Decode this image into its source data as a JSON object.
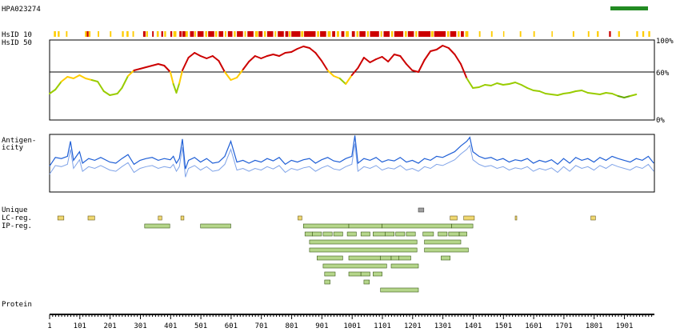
{
  "chart_data": {
    "type": "line",
    "title": "HPA023274",
    "protein_length": 2000,
    "x_ticks": [
      1,
      101,
      201,
      301,
      401,
      501,
      601,
      701,
      801,
      901,
      1001,
      1101,
      1201,
      1301,
      1401,
      1501,
      1601,
      1701,
      1801,
      1901
    ],
    "tracks": {
      "hsid10_label": "HsID 10",
      "hsid50_label": "HsID 50",
      "antigenicity_label_1": "Antigen-",
      "antigenicity_label_2": "icity",
      "unique_label": "Unique",
      "lc_label": "LC-reg.",
      "ip_label": "IP-reg.",
      "protein_label": "Protein"
    },
    "hsid_axis": {
      "ticks": [
        "100%",
        "60%",
        "0%"
      ],
      "ylim": [
        0,
        100
      ],
      "threshold": 60
    },
    "colors": {
      "high": "#cc0000",
      "mid": "#ffcc00",
      "low": "#99cc00",
      "lowest": "#66aa00",
      "antigen_dark": "#1f5fd6",
      "antigen_light": "#7fa3e8",
      "lc_fill": "#f0d870",
      "ip_fill": "#b5d68a",
      "ip_border": "#3d5a1a",
      "legend_bar": "#228b22"
    },
    "hsid50": [
      [
        1,
        33
      ],
      [
        20,
        38
      ],
      [
        40,
        48
      ],
      [
        60,
        54
      ],
      [
        80,
        52
      ],
      [
        100,
        56
      ],
      [
        120,
        52
      ],
      [
        140,
        50
      ],
      [
        160,
        48
      ],
      [
        180,
        36
      ],
      [
        200,
        31
      ],
      [
        225,
        33
      ],
      [
        240,
        40
      ],
      [
        260,
        55
      ],
      [
        280,
        62
      ],
      [
        300,
        64
      ],
      [
        320,
        66
      ],
      [
        340,
        68
      ],
      [
        360,
        70
      ],
      [
        380,
        68
      ],
      [
        400,
        60
      ],
      [
        410,
        45
      ],
      [
        420,
        34
      ],
      [
        430,
        46
      ],
      [
        440,
        62
      ],
      [
        460,
        78
      ],
      [
        480,
        84
      ],
      [
        500,
        80
      ],
      [
        520,
        77
      ],
      [
        540,
        80
      ],
      [
        560,
        74
      ],
      [
        580,
        60
      ],
      [
        600,
        50
      ],
      [
        620,
        53
      ],
      [
        640,
        63
      ],
      [
        660,
        73
      ],
      [
        680,
        80
      ],
      [
        700,
        77
      ],
      [
        720,
        80
      ],
      [
        740,
        82
      ],
      [
        760,
        80
      ],
      [
        780,
        84
      ],
      [
        800,
        85
      ],
      [
        820,
        89
      ],
      [
        840,
        92
      ],
      [
        860,
        90
      ],
      [
        880,
        84
      ],
      [
        900,
        74
      ],
      [
        920,
        62
      ],
      [
        940,
        55
      ],
      [
        960,
        52
      ],
      [
        980,
        45
      ],
      [
        1000,
        56
      ],
      [
        1020,
        65
      ],
      [
        1040,
        78
      ],
      [
        1060,
        72
      ],
      [
        1080,
        76
      ],
      [
        1100,
        79
      ],
      [
        1120,
        73
      ],
      [
        1140,
        82
      ],
      [
        1160,
        80
      ],
      [
        1180,
        70
      ],
      [
        1200,
        62
      ],
      [
        1220,
        60
      ],
      [
        1240,
        75
      ],
      [
        1260,
        86
      ],
      [
        1280,
        88
      ],
      [
        1300,
        93
      ],
      [
        1320,
        90
      ],
      [
        1340,
        82
      ],
      [
        1360,
        70
      ],
      [
        1380,
        52
      ],
      [
        1400,
        40
      ],
      [
        1420,
        41
      ],
      [
        1440,
        44
      ],
      [
        1460,
        43
      ],
      [
        1480,
        46
      ],
      [
        1500,
        44
      ],
      [
        1520,
        45
      ],
      [
        1540,
        47
      ],
      [
        1560,
        44
      ],
      [
        1580,
        40
      ],
      [
        1600,
        37
      ],
      [
        1620,
        36
      ],
      [
        1640,
        33
      ],
      [
        1660,
        32
      ],
      [
        1680,
        31
      ],
      [
        1700,
        33
      ],
      [
        1720,
        34
      ],
      [
        1740,
        36
      ],
      [
        1760,
        37
      ],
      [
        1780,
        34
      ],
      [
        1800,
        33
      ],
      [
        1820,
        32
      ],
      [
        1840,
        34
      ],
      [
        1860,
        33
      ],
      [
        1880,
        30
      ],
      [
        1900,
        28
      ],
      [
        1920,
        30
      ],
      [
        1940,
        32
      ]
    ],
    "hsid10_segments": [
      [
        15,
        22,
        "mid"
      ],
      [
        28,
        34,
        "mid"
      ],
      [
        55,
        60,
        "mid"
      ],
      [
        118,
        124,
        "mid"
      ],
      [
        124,
        130,
        "high"
      ],
      [
        130,
        136,
        "mid"
      ],
      [
        160,
        165,
        "mid"
      ],
      [
        200,
        205,
        "mid"
      ],
      [
        240,
        246,
        "mid"
      ],
      [
        255,
        262,
        "mid"
      ],
      [
        275,
        280,
        "mid"
      ],
      [
        310,
        318,
        "high"
      ],
      [
        320,
        326,
        "mid"
      ],
      [
        340,
        345,
        "high"
      ],
      [
        355,
        362,
        "mid"
      ],
      [
        370,
        376,
        "high"
      ],
      [
        380,
        386,
        "mid"
      ],
      [
        400,
        406,
        "high"
      ],
      [
        410,
        420,
        "mid"
      ],
      [
        430,
        438,
        "high"
      ],
      [
        440,
        450,
        "high"
      ],
      [
        450,
        458,
        "mid"
      ],
      [
        465,
        478,
        "high"
      ],
      [
        480,
        485,
        "mid"
      ],
      [
        490,
        510,
        "high"
      ],
      [
        515,
        522,
        "mid"
      ],
      [
        525,
        545,
        "high"
      ],
      [
        548,
        555,
        "mid"
      ],
      [
        560,
        575,
        "high"
      ],
      [
        580,
        585,
        "mid"
      ],
      [
        590,
        605,
        "high"
      ],
      [
        610,
        616,
        "mid"
      ],
      [
        620,
        640,
        "high"
      ],
      [
        645,
        650,
        "mid"
      ],
      [
        655,
        675,
        "high"
      ],
      [
        680,
        690,
        "mid"
      ],
      [
        692,
        705,
        "high"
      ],
      [
        710,
        716,
        "mid"
      ],
      [
        720,
        740,
        "high"
      ],
      [
        745,
        750,
        "mid"
      ],
      [
        755,
        775,
        "high"
      ],
      [
        780,
        790,
        "high"
      ],
      [
        792,
        798,
        "mid"
      ],
      [
        800,
        830,
        "high"
      ],
      [
        832,
        840,
        "mid"
      ],
      [
        842,
        880,
        "high"
      ],
      [
        885,
        892,
        "mid"
      ],
      [
        895,
        915,
        "high"
      ],
      [
        920,
        930,
        "mid"
      ],
      [
        935,
        945,
        "high"
      ],
      [
        950,
        958,
        "mid"
      ],
      [
        965,
        975,
        "high"
      ],
      [
        980,
        990,
        "mid"
      ],
      [
        1000,
        1010,
        "high"
      ],
      [
        1015,
        1022,
        "mid"
      ],
      [
        1025,
        1045,
        "high"
      ],
      [
        1050,
        1056,
        "mid"
      ],
      [
        1060,
        1090,
        "high"
      ],
      [
        1095,
        1100,
        "mid"
      ],
      [
        1105,
        1125,
        "high"
      ],
      [
        1130,
        1136,
        "mid"
      ],
      [
        1140,
        1170,
        "high"
      ],
      [
        1175,
        1182,
        "mid"
      ],
      [
        1185,
        1205,
        "high"
      ],
      [
        1210,
        1216,
        "mid"
      ],
      [
        1220,
        1260,
        "high"
      ],
      [
        1262,
        1270,
        "mid"
      ],
      [
        1272,
        1310,
        "high"
      ],
      [
        1315,
        1322,
        "mid"
      ],
      [
        1325,
        1345,
        "high"
      ],
      [
        1350,
        1356,
        "mid"
      ],
      [
        1360,
        1370,
        "high"
      ],
      [
        1375,
        1385,
        "mid"
      ],
      [
        1420,
        1425,
        "mid"
      ],
      [
        1460,
        1465,
        "mid"
      ],
      [
        1500,
        1504,
        "mid"
      ],
      [
        1555,
        1560,
        "mid"
      ],
      [
        1600,
        1605,
        "mid"
      ],
      [
        1660,
        1664,
        "mid"
      ],
      [
        1730,
        1735,
        "mid"
      ],
      [
        1780,
        1785,
        "mid"
      ],
      [
        1810,
        1816,
        "mid"
      ],
      [
        1850,
        1856,
        "high"
      ],
      [
        1880,
        1886,
        "mid"
      ],
      [
        1940,
        1946,
        "mid"
      ],
      [
        1960,
        1966,
        "mid"
      ],
      [
        1980,
        1986,
        "mid"
      ]
    ],
    "antigenicity": [
      [
        1,
        45
      ],
      [
        20,
        60
      ],
      [
        40,
        58
      ],
      [
        60,
        62
      ],
      [
        70,
        88
      ],
      [
        80,
        55
      ],
      [
        100,
        70
      ],
      [
        110,
        50
      ],
      [
        130,
        58
      ],
      [
        150,
        55
      ],
      [
        170,
        60
      ],
      [
        200,
        52
      ],
      [
        220,
        50
      ],
      [
        240,
        58
      ],
      [
        260,
        65
      ],
      [
        280,
        48
      ],
      [
        300,
        55
      ],
      [
        320,
        58
      ],
      [
        340,
        60
      ],
      [
        360,
        55
      ],
      [
        380,
        58
      ],
      [
        400,
        56
      ],
      [
        410,
        62
      ],
      [
        420,
        50
      ],
      [
        430,
        58
      ],
      [
        440,
        92
      ],
      [
        450,
        40
      ],
      [
        460,
        55
      ],
      [
        480,
        60
      ],
      [
        500,
        52
      ],
      [
        520,
        58
      ],
      [
        540,
        50
      ],
      [
        560,
        52
      ],
      [
        580,
        62
      ],
      [
        600,
        88
      ],
      [
        620,
        52
      ],
      [
        640,
        55
      ],
      [
        660,
        50
      ],
      [
        680,
        55
      ],
      [
        700,
        52
      ],
      [
        720,
        58
      ],
      [
        740,
        54
      ],
      [
        760,
        60
      ],
      [
        780,
        48
      ],
      [
        800,
        55
      ],
      [
        820,
        52
      ],
      [
        840,
        56
      ],
      [
        860,
        58
      ],
      [
        880,
        50
      ],
      [
        900,
        56
      ],
      [
        920,
        60
      ],
      [
        940,
        54
      ],
      [
        960,
        52
      ],
      [
        980,
        58
      ],
      [
        1000,
        62
      ],
      [
        1010,
        98
      ],
      [
        1020,
        50
      ],
      [
        1040,
        58
      ],
      [
        1060,
        55
      ],
      [
        1080,
        60
      ],
      [
        1100,
        52
      ],
      [
        1120,
        56
      ],
      [
        1140,
        54
      ],
      [
        1160,
        60
      ],
      [
        1180,
        52
      ],
      [
        1200,
        55
      ],
      [
        1220,
        50
      ],
      [
        1240,
        58
      ],
      [
        1260,
        55
      ],
      [
        1280,
        62
      ],
      [
        1300,
        60
      ],
      [
        1320,
        65
      ],
      [
        1340,
        70
      ],
      [
        1360,
        80
      ],
      [
        1380,
        88
      ],
      [
        1390,
        95
      ],
      [
        1400,
        70
      ],
      [
        1420,
        62
      ],
      [
        1440,
        58
      ],
      [
        1460,
        60
      ],
      [
        1480,
        55
      ],
      [
        1500,
        58
      ],
      [
        1520,
        52
      ],
      [
        1540,
        56
      ],
      [
        1560,
        54
      ],
      [
        1580,
        58
      ],
      [
        1600,
        50
      ],
      [
        1620,
        55
      ],
      [
        1640,
        52
      ],
      [
        1660,
        56
      ],
      [
        1680,
        48
      ],
      [
        1700,
        58
      ],
      [
        1720,
        50
      ],
      [
        1740,
        60
      ],
      [
        1760,
        55
      ],
      [
        1780,
        58
      ],
      [
        1800,
        52
      ],
      [
        1820,
        60
      ],
      [
        1840,
        55
      ],
      [
        1860,
        62
      ],
      [
        1880,
        58
      ],
      [
        1900,
        55
      ],
      [
        1920,
        52
      ],
      [
        1940,
        58
      ],
      [
        1960,
        55
      ],
      [
        1980,
        62
      ],
      [
        1998,
        50
      ]
    ],
    "unique": [
      [
        1220,
        1238
      ]
    ],
    "lc_regions": [
      [
        28,
        48
      ],
      [
        128,
        150
      ],
      [
        360,
        372
      ],
      [
        435,
        445
      ],
      [
        822,
        835
      ],
      [
        1325,
        1348
      ],
      [
        1370,
        1405
      ],
      [
        1540,
        1545
      ],
      [
        1790,
        1805
      ]
    ],
    "ip_regions": [
      [
        [
          315,
          398
        ],
        [
          500,
          600
        ],
        [
          840,
          990
        ],
        [
          990,
          1100
        ],
        [
          1100,
          1330
        ],
        [
          1330,
          1400
        ]
      ],
      [
        [
          845,
          870
        ],
        [
          870,
          900
        ],
        [
          905,
          935
        ],
        [
          940,
          970
        ],
        [
          985,
          1015
        ],
        [
          1030,
          1060
        ],
        [
          1070,
          1110
        ],
        [
          1110,
          1140
        ],
        [
          1145,
          1175
        ],
        [
          1180,
          1210
        ],
        [
          1235,
          1270
        ],
        [
          1285,
          1315
        ],
        [
          1320,
          1355
        ],
        [
          1355,
          1380
        ]
      ],
      [
        [
          860,
          1215
        ],
        [
          1240,
          1360
        ]
      ],
      [
        [
          860,
          1215
        ],
        [
          1240,
          1385
        ]
      ],
      [
        [
          885,
          970
        ],
        [
          990,
          1095
        ],
        [
          1095,
          1130
        ],
        [
          1130,
          1155
        ],
        [
          1155,
          1195
        ],
        [
          1295,
          1325
        ]
      ],
      [
        [
          905,
          1115
        ],
        [
          1130,
          1220
        ]
      ],
      [
        [
          910,
          945
        ],
        [
          990,
          1030
        ],
        [
          1030,
          1060
        ],
        [
          1070,
          1100
        ]
      ],
      [
        [
          910,
          928
        ],
        [
          1040,
          1058
        ]
      ],
      [
        [
          1095,
          1220
        ]
      ]
    ]
  }
}
